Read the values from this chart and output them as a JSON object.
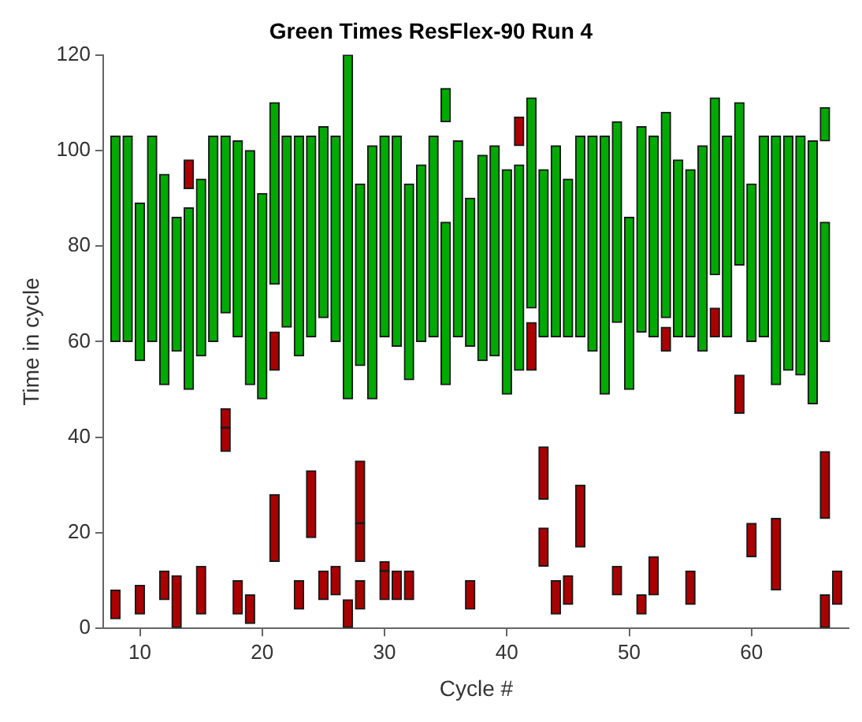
{
  "chart_data": {
    "type": "bar",
    "title": "Green Times ResFlex-90 Run 4",
    "xlabel": "Cycle #",
    "ylabel": "Time in cycle",
    "xlim": [
      7,
      68
    ],
    "xticks": [
      10,
      20,
      30,
      40,
      50,
      60
    ],
    "ylim": [
      0,
      120
    ],
    "yticks": [
      0,
      20,
      40,
      60,
      80,
      100,
      120
    ],
    "grid": false,
    "legend": false,
    "series": [
      {
        "type": "bar",
        "color": "#00aa00",
        "x": [
          8,
          9,
          10,
          11,
          12,
          13,
          14,
          15,
          16,
          17,
          18,
          19,
          20,
          21,
          22,
          23,
          24,
          25,
          26,
          27,
          28,
          29,
          30,
          31,
          32,
          33,
          34,
          35,
          36,
          37,
          38,
          39,
          40,
          41,
          42,
          43,
          44,
          45,
          46,
          47,
          48,
          49,
          50,
          51,
          52,
          53,
          54,
          55,
          56,
          57,
          58,
          59,
          60,
          61,
          62,
          63,
          64,
          65,
          66
        ],
        "base": [
          60,
          60,
          56,
          60,
          51,
          58,
          50,
          57,
          60,
          66,
          61,
          51,
          48,
          72,
          63,
          57,
          61,
          65,
          60,
          48,
          55,
          48,
          61,
          59,
          52,
          60,
          61,
          51,
          61,
          59,
          56,
          57,
          49,
          54,
          67,
          61,
          61,
          61,
          61,
          58,
          49,
          64,
          50,
          62,
          61,
          65,
          61,
          61,
          58,
          74,
          61,
          76,
          60,
          61,
          51,
          54,
          53,
          47,
          60
        ],
        "values": [
          43,
          43,
          33,
          43,
          44,
          28,
          38,
          37,
          43,
          37,
          41,
          49,
          43,
          38,
          40,
          46,
          42,
          40,
          43,
          72,
          38,
          53,
          42,
          44,
          41,
          37,
          42,
          34,
          41,
          31,
          43,
          44,
          47,
          43,
          44,
          35,
          40,
          33,
          42,
          45,
          54,
          42,
          36,
          43,
          42,
          43,
          37,
          35,
          43,
          37,
          42,
          34,
          33,
          42,
          52,
          49,
          50,
          55,
          25
        ]
      },
      {
        "type": "bar",
        "color": "#00aa00",
        "x": [
          35,
          66
        ],
        "base": [
          106,
          102
        ],
        "values": [
          7,
          7
        ]
      },
      {
        "type": "bar",
        "color": "#aa0000",
        "x": [
          8,
          10,
          12,
          13,
          14,
          15,
          17,
          18,
          19,
          21,
          23,
          24,
          25,
          26,
          27,
          28,
          30,
          31,
          32,
          37,
          41,
          42,
          43,
          44,
          45,
          46,
          49,
          51,
          52,
          53,
          55,
          57,
          59,
          60,
          62,
          66,
          67
        ],
        "base": [
          2,
          3,
          6,
          0,
          92,
          3,
          37,
          3,
          1,
          54,
          4,
          19,
          6,
          7,
          0,
          4,
          6,
          6,
          6,
          4,
          101,
          54,
          13,
          3,
          5,
          17,
          7,
          3,
          7,
          58,
          5,
          61,
          45,
          15,
          8,
          0,
          5
        ],
        "values": [
          6,
          6,
          6,
          11,
          6,
          10,
          5,
          7,
          6,
          8,
          6,
          14,
          6,
          6,
          6,
          6,
          6,
          6,
          6,
          6,
          6,
          10,
          8,
          7,
          6,
          13,
          6,
          4,
          8,
          5,
          7,
          6,
          8,
          7,
          15,
          7,
          7
        ]
      },
      {
        "type": "bar",
        "color": "#aa0000",
        "x": [
          17,
          21,
          28,
          30,
          43,
          66
        ],
        "base": [
          42,
          14,
          14,
          12,
          27,
          23
        ],
        "values": [
          4,
          14,
          8,
          2,
          11,
          14
        ]
      },
      {
        "type": "bar",
        "color": "#aa0000",
        "x": [
          28
        ],
        "base": [
          22
        ],
        "values": [
          13
        ]
      }
    ]
  }
}
